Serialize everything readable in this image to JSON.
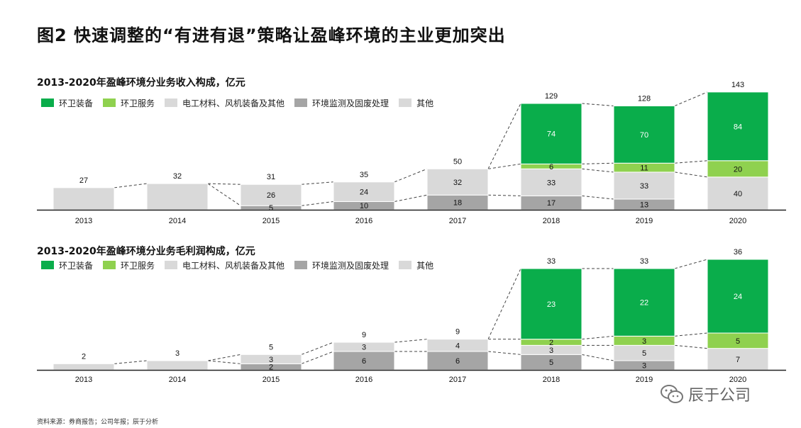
{
  "page": {
    "title": "图2 快速调整的“有进有退”策略让盈峰环境的主业更加突出",
    "source": "资料来源：券商报告；公司年报；辰于分析",
    "watermark": "辰于公司"
  },
  "colors": {
    "环卫装备": "#0aad4b",
    "环卫服务": "#8fd14f",
    "电工材料、风机装备及其他": "#d9d9d9",
    "环境监测及固废处理": "#a5a5a5",
    "其他": "#d9d9d9"
  },
  "legend": [
    "环卫装备",
    "环卫服务",
    "电工材料、风机装备及其他",
    "环境监测及固废处理",
    "其他"
  ],
  "chart_data": [
    {
      "type": "bar",
      "stacked": true,
      "title": "2013-2020年盈峰环境分业务收入构成，亿元",
      "categories": [
        "2013",
        "2014",
        "2015",
        "2016",
        "2017",
        "2018",
        "2019",
        "2020"
      ],
      "totals": [
        27,
        32,
        31,
        35,
        50,
        129,
        128,
        143
      ],
      "series": [
        {
          "name": "环境监测及固废处理",
          "values": [
            null,
            null,
            5,
            10,
            18,
            17,
            13,
            null
          ]
        },
        {
          "name": "电工材料、风机装备及其他",
          "values": [
            27,
            32,
            26,
            24,
            32,
            33,
            33,
            40
          ]
        },
        {
          "name": "环卫服务",
          "values": [
            null,
            null,
            null,
            null,
            null,
            6,
            11,
            20
          ]
        },
        {
          "name": "环卫装备",
          "values": [
            null,
            null,
            null,
            null,
            null,
            74,
            70,
            84
          ]
        }
      ],
      "ylim": [
        0,
        143
      ]
    },
    {
      "type": "bar",
      "stacked": true,
      "title": "2013-2020年盈峰环境分业务毛利润构成，亿元",
      "categories": [
        "2013",
        "2014",
        "2015",
        "2016",
        "2017",
        "2018",
        "2019",
        "2020"
      ],
      "totals": [
        2,
        3,
        5,
        9,
        9,
        33,
        33,
        36
      ],
      "series": [
        {
          "name": "环境监测及固废处理",
          "values": [
            null,
            null,
            2,
            6,
            6,
            5,
            3,
            null
          ]
        },
        {
          "name": "电工材料、风机装备及其他",
          "values": [
            2,
            3,
            3,
            3,
            4,
            3,
            5,
            7
          ]
        },
        {
          "name": "环卫服务",
          "values": [
            null,
            null,
            null,
            null,
            null,
            2,
            3,
            5
          ]
        },
        {
          "name": "环卫装备",
          "values": [
            null,
            null,
            null,
            null,
            null,
            23,
            22,
            24
          ]
        }
      ],
      "ylim": [
        0,
        36
      ]
    }
  ]
}
